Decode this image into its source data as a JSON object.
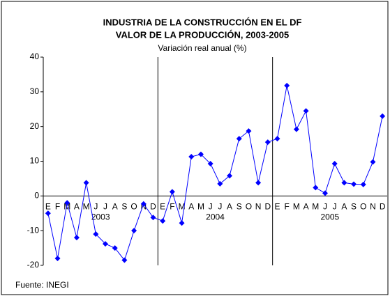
{
  "chart_data": {
    "type": "line",
    "title": "INDUSTRIA DE LA CONSTRUCCIÓN EN EL DF",
    "subtitle": "VALOR DE LA PRODUCCIÓN, 2003-2005",
    "y_label": "Variación real anual (%)",
    "source": "Fuente: INEGI",
    "categories": [
      "E",
      "F",
      "M",
      "A",
      "M",
      "J",
      "J",
      "A",
      "S",
      "O",
      "N",
      "D",
      "E",
      "F",
      "M",
      "A",
      "M",
      "J",
      "J",
      "A",
      "S",
      "O",
      "N",
      "D",
      "E",
      "F",
      "M",
      "A",
      "M",
      "J",
      "J",
      "A",
      "S",
      "O",
      "N",
      "D"
    ],
    "years": [
      "2003",
      "2004",
      "2005"
    ],
    "series": [
      {
        "name": "Variación real anual",
        "color": "#0000ff",
        "values": [
          -5,
          -18,
          -2,
          -12,
          3.8,
          -11,
          -13.8,
          -15,
          -18.5,
          -10,
          -2.3,
          -6.2,
          -7.2,
          1.2,
          -7.8,
          11.3,
          12,
          9.3,
          3.5,
          5.8,
          16.5,
          18.7,
          3.8,
          15.5,
          16.5,
          31.8,
          19.2,
          24.5,
          2.4,
          0.8,
          9.3,
          3.8,
          3.4,
          3.3,
          9.8,
          23
        ]
      }
    ],
    "ylim": [
      -20,
      40
    ],
    "yticks": [
      -20,
      -10,
      0,
      10,
      20,
      30,
      40
    ]
  }
}
